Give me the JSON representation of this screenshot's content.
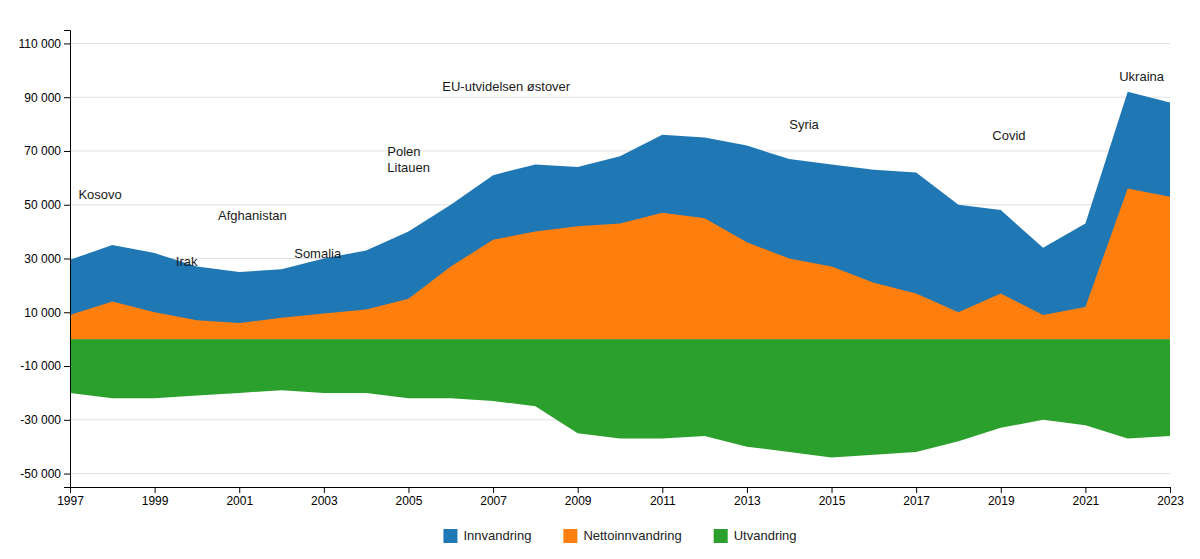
{
  "chart_data": {
    "type": "area",
    "x": [
      1997,
      1998,
      1999,
      2000,
      2001,
      2002,
      2003,
      2004,
      2005,
      2006,
      2007,
      2008,
      2009,
      2010,
      2011,
      2012,
      2013,
      2014,
      2015,
      2016,
      2017,
      2018,
      2019,
      2020,
      2021,
      2022,
      2023
    ],
    "series": [
      {
        "name": "Innvandring",
        "values": [
          29500,
          35000,
          32000,
          27000,
          25000,
          26000,
          30000,
          33000,
          40000,
          50000,
          61000,
          65000,
          64000,
          68000,
          76000,
          75000,
          72000,
          67000,
          65000,
          63000,
          62000,
          50000,
          48000,
          34000,
          43000,
          92000,
          88000
        ]
      },
      {
        "name": "Nettoinnvandring",
        "values": [
          9000,
          14000,
          10000,
          7000,
          6000,
          8000,
          9500,
          11000,
          15000,
          27000,
          37000,
          40000,
          42000,
          43000,
          47000,
          45000,
          36000,
          30000,
          27000,
          21000,
          17000,
          10000,
          17000,
          9000,
          12000,
          56000,
          53000
        ]
      },
      {
        "name": "Utvandring",
        "values": [
          -20000,
          -22000,
          -22000,
          -21000,
          -20000,
          -19000,
          -20000,
          -20000,
          -22000,
          -22000,
          -23000,
          -25000,
          -35000,
          -37000,
          -37000,
          -36000,
          -40000,
          -42000,
          -44000,
          -43000,
          -42000,
          -38000,
          -33000,
          -30000,
          -32000,
          -37000,
          -36000
        ]
      }
    ],
    "xlim": [
      1997,
      2023
    ],
    "xticks": [
      1997,
      1999,
      2001,
      2003,
      2005,
      2007,
      2009,
      2011,
      2013,
      2015,
      2017,
      2019,
      2021,
      2023
    ],
    "ylim": [
      -55000,
      115000
    ],
    "yticks": [
      {
        "value": -50000,
        "label": "-50 000"
      },
      {
        "value": -30000,
        "label": "-30 000"
      },
      {
        "value": -10000,
        "label": "-10 000"
      },
      {
        "value": 10000,
        "label": "10 000"
      },
      {
        "value": 30000,
        "label": "30 000"
      },
      {
        "value": 50000,
        "label": "50 000"
      },
      {
        "value": 70000,
        "label": "70 000"
      },
      {
        "value": 90000,
        "label": "90 000"
      },
      {
        "value": 110000,
        "label": "110 000"
      }
    ],
    "grid": true,
    "legend": "bottom",
    "annotations": [
      {
        "text": "Kosovo",
        "x": 1997.2,
        "y": 51000
      },
      {
        "text": "Irak",
        "x": 1999.5,
        "y": 26000
      },
      {
        "text": "Afghanistan",
        "x": 2000.5,
        "y": 43000
      },
      {
        "text": "Somalia",
        "x": 2002.3,
        "y": 29000
      },
      {
        "text": "Polen\nLitauen",
        "x": 2004.5,
        "y": 61000
      },
      {
        "text": "EU-utvidelsen østover",
        "x": 2005.8,
        "y": 91000
      },
      {
        "text": "Syria",
        "x": 2014.0,
        "y": 77000
      },
      {
        "text": "Covid",
        "x": 2018.8,
        "y": 73000
      },
      {
        "text": "Ukraina",
        "x": 2021.8,
        "y": 95000
      }
    ]
  }
}
